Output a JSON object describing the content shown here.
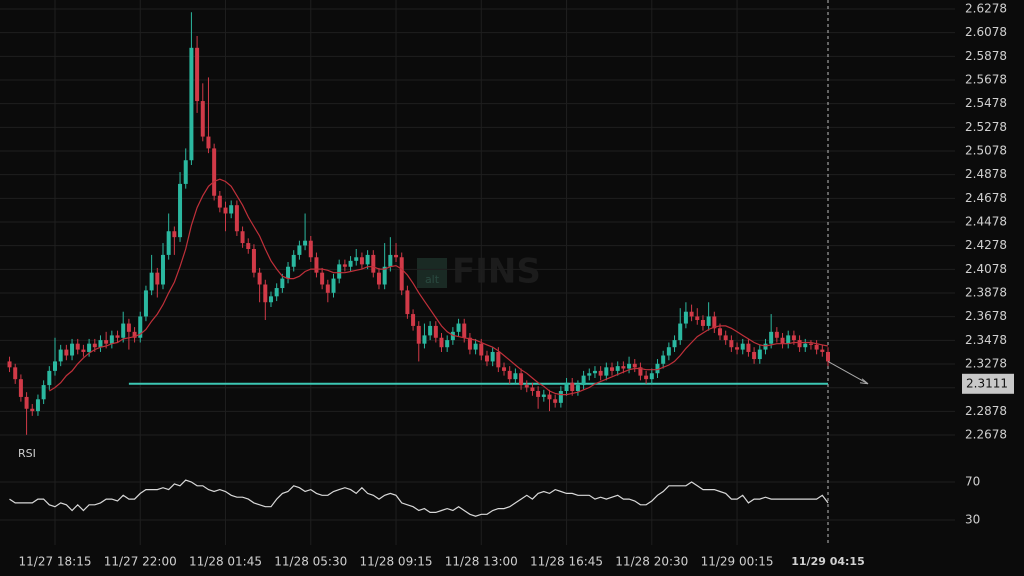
{
  "chart_data": {
    "type": "candlestick",
    "watermark_logo": "alt",
    "watermark": "FINS",
    "up_color": "#2bb8a0",
    "down_color": "#d13a48",
    "categories": [
      null,
      null,
      null,
      null,
      null,
      null,
      null,
      null,
      "11/27 18:15",
      null,
      null,
      null,
      null,
      null,
      null,
      null,
      null,
      null,
      null,
      null,
      null,
      null,
      null,
      "11/27 22:00",
      null,
      null,
      null,
      null,
      null,
      null,
      null,
      null,
      null,
      null,
      null,
      null,
      null,
      null,
      "11/28 01:45",
      null,
      null,
      null,
      null,
      null,
      null,
      null,
      null,
      null,
      null,
      null,
      null,
      null,
      null,
      "11/28 05:30",
      null,
      null,
      null,
      null,
      null,
      null,
      null,
      null,
      null,
      null,
      null,
      null,
      null,
      null,
      "11/28 09:15",
      null,
      null,
      null,
      null,
      null,
      null,
      null,
      null,
      null,
      null,
      null,
      null,
      null,
      null,
      "11/28 13:00",
      null,
      null,
      null,
      null,
      null,
      null,
      null,
      null,
      null,
      null,
      null,
      null,
      null,
      null,
      "11/28 16:45",
      null,
      null,
      null,
      null,
      null,
      null,
      null,
      null,
      null,
      null,
      null,
      null,
      null,
      null,
      "11/28 20:30",
      null,
      null,
      null,
      null,
      null,
      null,
      null,
      null,
      null,
      null,
      null,
      null,
      null,
      null,
      "11/29 00:15",
      null,
      null,
      null,
      null,
      null,
      null,
      null,
      null,
      null,
      null,
      null,
      null,
      null,
      null,
      null,
      "11/29 04:15"
    ],
    "candles": [
      [
        2.33,
        2.334,
        2.321,
        2.325
      ],
      [
        2.325,
        2.328,
        2.311,
        2.315
      ],
      [
        2.315,
        2.319,
        2.296,
        2.3
      ],
      [
        2.3,
        2.304,
        2.268,
        2.29
      ],
      [
        2.29,
        2.294,
        2.284,
        2.288
      ],
      [
        2.288,
        2.302,
        2.284,
        2.298
      ],
      [
        2.298,
        2.314,
        2.294,
        2.31
      ],
      [
        2.31,
        2.326,
        2.306,
        2.322
      ],
      [
        2.322,
        2.35,
        2.318,
        2.33
      ],
      [
        2.33,
        2.344,
        2.326,
        2.34
      ],
      [
        2.34,
        2.344,
        2.331,
        2.335
      ],
      [
        2.335,
        2.349,
        2.331,
        2.345
      ],
      [
        2.345,
        2.349,
        2.336,
        2.34
      ],
      [
        2.34,
        2.344,
        2.334,
        2.338
      ],
      [
        2.338,
        2.349,
        2.334,
        2.345
      ],
      [
        2.345,
        2.349,
        2.338,
        2.342
      ],
      [
        2.342,
        2.352,
        2.338,
        2.348
      ],
      [
        2.348,
        2.355,
        2.341,
        2.345
      ],
      [
        2.345,
        2.356,
        2.341,
        2.352
      ],
      [
        2.352,
        2.356,
        2.346,
        2.35
      ],
      [
        2.35,
        2.372,
        2.346,
        2.362
      ],
      [
        2.362,
        2.366,
        2.34,
        2.355
      ],
      [
        2.355,
        2.359,
        2.346,
        2.35
      ],
      [
        2.35,
        2.372,
        2.346,
        2.368
      ],
      [
        2.368,
        2.394,
        2.364,
        2.39
      ],
      [
        2.39,
        2.42,
        2.386,
        2.405
      ],
      [
        2.405,
        2.409,
        2.384,
        2.395
      ],
      [
        2.395,
        2.43,
        2.391,
        2.42
      ],
      [
        2.42,
        2.455,
        2.416,
        2.44
      ],
      [
        2.44,
        2.444,
        2.42,
        2.435
      ],
      [
        2.435,
        2.49,
        2.431,
        2.48
      ],
      [
        2.48,
        2.51,
        2.476,
        2.5
      ],
      [
        2.5,
        2.625,
        2.496,
        2.595
      ],
      [
        2.595,
        2.605,
        2.54,
        2.55
      ],
      [
        2.55,
        2.565,
        2.516,
        2.52
      ],
      [
        2.52,
        2.57,
        2.506,
        2.51
      ],
      [
        2.51,
        2.514,
        2.466,
        2.47
      ],
      [
        2.47,
        2.474,
        2.456,
        2.46
      ],
      [
        2.46,
        2.465,
        2.44,
        2.455
      ],
      [
        2.455,
        2.466,
        2.451,
        2.462
      ],
      [
        2.462,
        2.466,
        2.436,
        2.44
      ],
      [
        2.44,
        2.444,
        2.426,
        2.43
      ],
      [
        2.43,
        2.434,
        2.421,
        2.425
      ],
      [
        2.425,
        2.429,
        2.401,
        2.405
      ],
      [
        2.405,
        2.409,
        2.38,
        2.395
      ],
      [
        2.395,
        2.399,
        2.365,
        2.38
      ],
      [
        2.38,
        2.389,
        2.376,
        2.385
      ],
      [
        2.385,
        2.396,
        2.381,
        2.392
      ],
      [
        2.392,
        2.404,
        2.388,
        2.4
      ],
      [
        2.4,
        2.414,
        2.396,
        2.41
      ],
      [
        2.41,
        2.424,
        2.406,
        2.42
      ],
      [
        2.42,
        2.432,
        2.416,
        2.428
      ],
      [
        2.428,
        2.455,
        2.424,
        2.432
      ],
      [
        2.432,
        2.436,
        2.414,
        2.418
      ],
      [
        2.418,
        2.422,
        2.401,
        2.405
      ],
      [
        2.405,
        2.409,
        2.391,
        2.395
      ],
      [
        2.395,
        2.399,
        2.38,
        2.388
      ],
      [
        2.388,
        2.404,
        2.384,
        2.4
      ],
      [
        2.4,
        2.416,
        2.396,
        2.412
      ],
      [
        2.412,
        2.416,
        2.406,
        2.41
      ],
      [
        2.41,
        2.419,
        2.406,
        2.415
      ],
      [
        2.415,
        2.425,
        2.411,
        2.418
      ],
      [
        2.418,
        2.422,
        2.408,
        2.412
      ],
      [
        2.412,
        2.424,
        2.408,
        2.42
      ],
      [
        2.42,
        2.424,
        2.401,
        2.405
      ],
      [
        2.405,
        2.409,
        2.391,
        2.395
      ],
      [
        2.395,
        2.43,
        2.391,
        2.41
      ],
      [
        2.41,
        2.435,
        2.406,
        2.42
      ],
      [
        2.42,
        2.43,
        2.414,
        2.418
      ],
      [
        2.418,
        2.422,
        2.386,
        2.39
      ],
      [
        2.39,
        2.394,
        2.366,
        2.37
      ],
      [
        2.37,
        2.374,
        2.356,
        2.36
      ],
      [
        2.36,
        2.364,
        2.33,
        2.345
      ],
      [
        2.345,
        2.362,
        2.341,
        2.352
      ],
      [
        2.352,
        2.364,
        2.348,
        2.36
      ],
      [
        2.36,
        2.364,
        2.346,
        2.35
      ],
      [
        2.35,
        2.354,
        2.338,
        2.342
      ],
      [
        2.342,
        2.352,
        2.338,
        2.348
      ],
      [
        2.348,
        2.359,
        2.344,
        2.355
      ],
      [
        2.355,
        2.366,
        2.351,
        2.362
      ],
      [
        2.362,
        2.366,
        2.346,
        2.35
      ],
      [
        2.35,
        2.354,
        2.336,
        2.34
      ],
      [
        2.34,
        2.349,
        2.336,
        2.345
      ],
      [
        2.345,
        2.349,
        2.331,
        2.335
      ],
      [
        2.335,
        2.339,
        2.326,
        2.33
      ],
      [
        2.33,
        2.342,
        2.326,
        2.338
      ],
      [
        2.338,
        2.342,
        2.321,
        2.325
      ],
      [
        2.325,
        2.329,
        2.318,
        2.322
      ],
      [
        2.322,
        2.326,
        2.311,
        2.315
      ],
      [
        2.315,
        2.324,
        2.311,
        2.32
      ],
      [
        2.32,
        2.324,
        2.306,
        2.31
      ],
      [
        2.31,
        2.314,
        2.304,
        2.308
      ],
      [
        2.308,
        2.312,
        2.301,
        2.305
      ],
      [
        2.305,
        2.309,
        2.29,
        2.3
      ],
      [
        2.3,
        2.306,
        2.296,
        2.302
      ],
      [
        2.302,
        2.306,
        2.288,
        2.298
      ],
      [
        2.298,
        2.302,
        2.291,
        2.295
      ],
      [
        2.295,
        2.309,
        2.291,
        2.305
      ],
      [
        2.305,
        2.316,
        2.301,
        2.312
      ],
      [
        2.312,
        2.316,
        2.301,
        2.305
      ],
      [
        2.305,
        2.314,
        2.301,
        2.31
      ],
      [
        2.31,
        2.322,
        2.306,
        2.318
      ],
      [
        2.318,
        2.324,
        2.314,
        2.32
      ],
      [
        2.32,
        2.326,
        2.316,
        2.322
      ],
      [
        2.322,
        2.326,
        2.314,
        2.318
      ],
      [
        2.318,
        2.329,
        2.314,
        2.325
      ],
      [
        2.325,
        2.329,
        2.318,
        2.322
      ],
      [
        2.322,
        2.33,
        2.318,
        2.326
      ],
      [
        2.326,
        2.33,
        2.32,
        2.324
      ],
      [
        2.324,
        2.334,
        2.32,
        2.328
      ],
      [
        2.328,
        2.332,
        2.321,
        2.325
      ],
      [
        2.325,
        2.329,
        2.314,
        2.318
      ],
      [
        2.318,
        2.322,
        2.311,
        2.315
      ],
      [
        2.315,
        2.324,
        2.311,
        2.32
      ],
      [
        2.32,
        2.332,
        2.316,
        2.328
      ],
      [
        2.328,
        2.339,
        2.324,
        2.335
      ],
      [
        2.335,
        2.346,
        2.331,
        2.342
      ],
      [
        2.342,
        2.352,
        2.338,
        2.348
      ],
      [
        2.348,
        2.375,
        2.344,
        2.362
      ],
      [
        2.362,
        2.38,
        2.358,
        2.372
      ],
      [
        2.372,
        2.378,
        2.364,
        2.368
      ],
      [
        2.368,
        2.375,
        2.361,
        2.365
      ],
      [
        2.365,
        2.369,
        2.356,
        2.36
      ],
      [
        2.36,
        2.38,
        2.356,
        2.368
      ],
      [
        2.368,
        2.372,
        2.354,
        2.358
      ],
      [
        2.358,
        2.362,
        2.348,
        2.352
      ],
      [
        2.352,
        2.356,
        2.344,
        2.348
      ],
      [
        2.348,
        2.352,
        2.338,
        2.342
      ],
      [
        2.342,
        2.346,
        2.336,
        2.34
      ],
      [
        2.34,
        2.349,
        2.336,
        2.345
      ],
      [
        2.345,
        2.349,
        2.334,
        2.338
      ],
      [
        2.338,
        2.342,
        2.328,
        2.332
      ],
      [
        2.332,
        2.344,
        2.328,
        2.34
      ],
      [
        2.34,
        2.349,
        2.336,
        2.345
      ],
      [
        2.345,
        2.37,
        2.341,
        2.355
      ],
      [
        2.355,
        2.359,
        2.346,
        2.35
      ],
      [
        2.35,
        2.354,
        2.341,
        2.345
      ],
      [
        2.345,
        2.356,
        2.341,
        2.352
      ],
      [
        2.352,
        2.356,
        2.344,
        2.348
      ],
      [
        2.348,
        2.352,
        2.338,
        2.342
      ],
      [
        2.342,
        2.349,
        2.338,
        2.345
      ],
      [
        2.345,
        2.348,
        2.34,
        2.344
      ],
      [
        2.344,
        2.348,
        2.336,
        2.34
      ],
      [
        2.34,
        2.344,
        2.334,
        2.338
      ],
      [
        2.338,
        2.342,
        2.326,
        2.33
      ]
    ],
    "ma": {
      "color": "#c0303a",
      "values": [
        null,
        null,
        null,
        null,
        null,
        null,
        null,
        2.305,
        2.308,
        2.312,
        2.318,
        2.322,
        2.328,
        2.333,
        2.337,
        2.34,
        2.342,
        2.343,
        2.345,
        2.346,
        2.349,
        2.35,
        2.351,
        2.353,
        2.357,
        2.364,
        2.37,
        2.378,
        2.388,
        2.397,
        2.41,
        2.425,
        2.445,
        2.46,
        2.47,
        2.478,
        2.482,
        2.484,
        2.482,
        2.478,
        2.47,
        2.462,
        2.452,
        2.444,
        2.436,
        2.425,
        2.415,
        2.408,
        2.402,
        2.4,
        2.4,
        2.402,
        2.406,
        2.408,
        2.408,
        2.408,
        2.407,
        2.405,
        2.405,
        2.405,
        2.406,
        2.407,
        2.408,
        2.41,
        2.41,
        2.408,
        2.408,
        2.41,
        2.411,
        2.408,
        2.403,
        2.396,
        2.388,
        2.381,
        2.374,
        2.367,
        2.36,
        2.355,
        2.352,
        2.351,
        2.35,
        2.349,
        2.348,
        2.346,
        2.344,
        2.342,
        2.339,
        2.335,
        2.331,
        2.327,
        2.323,
        2.32,
        2.316,
        2.312,
        2.309,
        2.305,
        2.303,
        2.302,
        2.302,
        2.303,
        2.304,
        2.306,
        2.308,
        2.311,
        2.313,
        2.315,
        2.317,
        2.319,
        2.321,
        2.323,
        2.324,
        2.324,
        2.323,
        2.323,
        2.323,
        2.325,
        2.327,
        2.33,
        2.335,
        2.341,
        2.346,
        2.351,
        2.354,
        2.357,
        2.359,
        2.36,
        2.36,
        2.358,
        2.355,
        2.352,
        2.349,
        2.346,
        2.344,
        2.343,
        2.344,
        2.345,
        2.345,
        2.345,
        2.346,
        2.346,
        2.346,
        2.346,
        2.345,
        2.344,
        2.343
      ]
    },
    "ylim": [
      2.2636,
      2.6354
    ],
    "yticks": [
      2.2678,
      2.2878,
      2.3078,
      2.3278,
      2.3478,
      2.3678,
      2.3878,
      2.4078,
      2.4278,
      2.4478,
      2.4678,
      2.4878,
      2.5078,
      2.5278,
      2.5478,
      2.5678,
      2.5878,
      2.6078,
      2.6278
    ],
    "support": {
      "value": 2.3111,
      "color": "#3cc8b4"
    },
    "rsi": {
      "title": "RSI",
      "color": "#d8d8d8",
      "ylim": [
        10,
        90
      ],
      "yticks": [
        30,
        70
      ],
      "values": [
        52,
        48,
        48,
        48,
        48,
        52,
        52,
        46,
        44,
        48,
        46,
        40,
        46,
        40,
        46,
        46,
        48,
        52,
        52,
        50,
        56,
        52,
        52,
        58,
        62,
        62,
        62,
        64,
        62,
        68,
        66,
        72,
        70,
        66,
        66,
        62,
        60,
        62,
        60,
        56,
        54,
        54,
        52,
        48,
        46,
        44,
        44,
        52,
        58,
        60,
        66,
        64,
        60,
        62,
        58,
        56,
        56,
        60,
        62,
        64,
        62,
        58,
        64,
        58,
        56,
        52,
        56,
        58,
        56,
        48,
        46,
        44,
        40,
        42,
        38,
        38,
        40,
        42,
        40,
        44,
        40,
        36,
        34,
        36,
        36,
        40,
        42,
        42,
        44,
        48,
        52,
        56,
        52,
        58,
        60,
        58,
        62,
        60,
        58,
        58,
        56,
        56,
        56,
        52,
        54,
        52,
        54,
        56,
        52,
        52,
        50,
        46,
        46,
        50,
        56,
        60,
        66,
        66,
        66,
        66,
        70,
        66,
        62,
        62,
        62,
        60,
        58,
        52,
        52,
        56,
        48,
        52,
        52,
        54,
        52,
        52,
        52,
        52,
        52,
        52,
        52,
        52,
        52,
        56,
        48
      ]
    }
  }
}
